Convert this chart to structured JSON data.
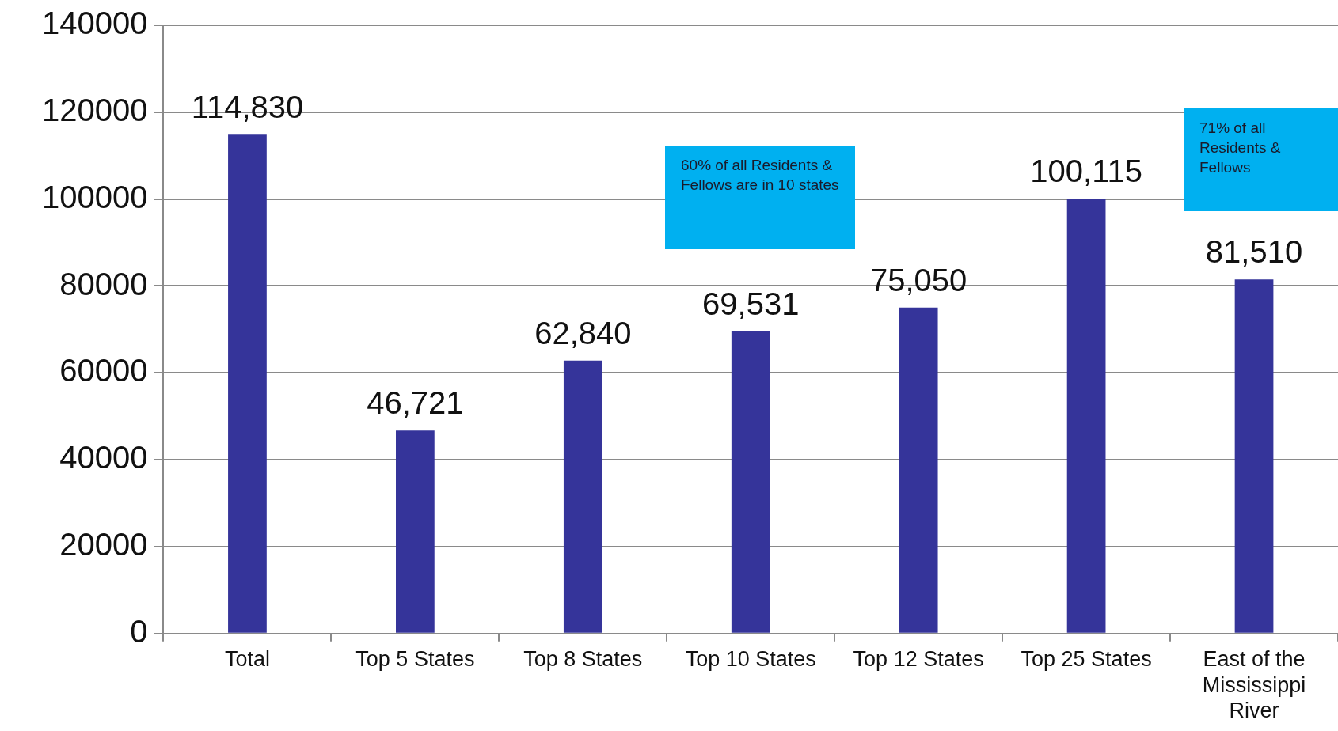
{
  "chart_data": {
    "type": "bar",
    "categories": [
      "Total",
      "Top 5 States",
      "Top 8 States",
      "Top 10 States",
      "Top 12 States",
      "Top 25 States",
      "East of the Mississippi River"
    ],
    "values": [
      114830,
      46721,
      62840,
      69531,
      75050,
      100115,
      81510
    ],
    "color": "#35349a",
    "ylim": [
      0,
      140000
    ],
    "yticks": [
      0,
      20000,
      40000,
      60000,
      80000,
      100000,
      120000,
      140000
    ],
    "grid": "y",
    "legend": false,
    "data_labels": true,
    "value_labels": [
      "114,830",
      "46,721",
      "62,840",
      "69,531",
      "75,050",
      "100,115",
      "81,510"
    ],
    "annotations": [
      "60% of all Residents & Fellows are in 10 states",
      "71% of all Residents & Fellows"
    ]
  }
}
